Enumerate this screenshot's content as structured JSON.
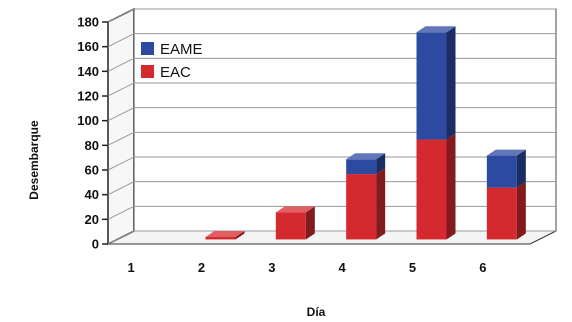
{
  "chart_data": {
    "type": "bar",
    "stacked": true,
    "style": "3d",
    "categories": [
      "1",
      "2",
      "3",
      "4",
      "5",
      "6"
    ],
    "series": [
      {
        "name": "EAC",
        "values": [
          0,
          2,
          22,
          53,
          81,
          42
        ],
        "color": "#d42a2f"
      },
      {
        "name": "EAME",
        "values": [
          0,
          0,
          0,
          12,
          87,
          26
        ],
        "color": "#2b4aa0"
      }
    ],
    "xlabel": "Día",
    "ylabel": "Desembarque",
    "ylim": [
      0,
      180
    ],
    "yticks": [
      0,
      20,
      40,
      60,
      80,
      100,
      120,
      140,
      160,
      180
    ],
    "grid": true,
    "legend": {
      "placement": "top-left",
      "order": [
        "EAME",
        "EAC"
      ]
    }
  }
}
